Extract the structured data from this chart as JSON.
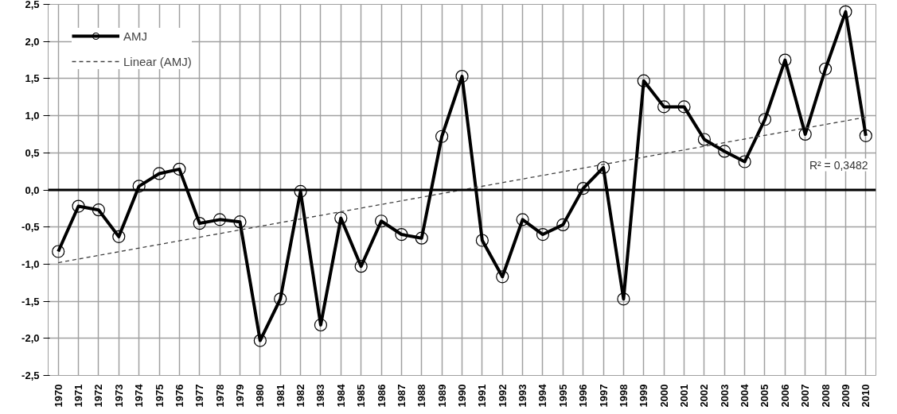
{
  "chart_data": {
    "type": "line",
    "x": [
      1970,
      1971,
      1972,
      1973,
      1974,
      1975,
      1976,
      1977,
      1978,
      1979,
      1980,
      1981,
      1982,
      1983,
      1984,
      1985,
      1986,
      1987,
      1988,
      1989,
      1990,
      1991,
      1992,
      1993,
      1994,
      1995,
      1996,
      1997,
      1998,
      1999,
      2000,
      2001,
      2002,
      2003,
      2004,
      2005,
      2006,
      2007,
      2008,
      2009,
      2010
    ],
    "series": [
      {
        "name": "AMJ",
        "color": "#000000",
        "marker": "circle",
        "line_style": "solid",
        "values": [
          -0.83,
          -0.22,
          -0.27,
          -0.63,
          0.05,
          0.22,
          0.28,
          -0.45,
          -0.4,
          -0.43,
          -2.03,
          -1.47,
          -0.02,
          -1.82,
          -0.38,
          -1.03,
          -0.42,
          -0.6,
          -0.65,
          0.72,
          1.53,
          -0.68,
          -1.17,
          -0.4,
          -0.6,
          -0.47,
          0.02,
          0.3,
          -1.47,
          1.47,
          1.12,
          1.12,
          0.68,
          0.52,
          0.38,
          0.95,
          1.75,
          0.75,
          1.63,
          2.4,
          0.73
        ]
      },
      {
        "name": "Linear (AMJ)",
        "type": "line",
        "color": "#404040",
        "marker": "none",
        "line_style": "dashed",
        "x": [
          1970,
          2010
        ],
        "values": [
          -0.98,
          0.98
        ]
      }
    ],
    "xlim": [
      1969.5,
      2010.5
    ],
    "xticks": [
      1970,
      1971,
      1972,
      1973,
      1974,
      1975,
      1976,
      1977,
      1978,
      1979,
      1980,
      1981,
      1982,
      1983,
      1984,
      1985,
      1986,
      1987,
      1988,
      1989,
      1990,
      1991,
      1992,
      1993,
      1994,
      1995,
      1996,
      1997,
      1998,
      1999,
      2000,
      2001,
      2002,
      2003,
      2004,
      2005,
      2006,
      2007,
      2008,
      2009,
      2010
    ],
    "ylim": [
      -2.5,
      2.5
    ],
    "yticks": [
      {
        "value": -2.5,
        "label": "-2,5"
      },
      {
        "value": -2.0,
        "label": "-2,0"
      },
      {
        "value": -1.5,
        "label": "-1,5"
      },
      {
        "value": -1.0,
        "label": "-1,0"
      },
      {
        "value": -0.5,
        "label": "-0,5"
      },
      {
        "value": 0,
        "label": "0,0"
      },
      {
        "value": 0.5,
        "label": "0,5"
      },
      {
        "value": 1.0,
        "label": "1,0"
      },
      {
        "value": 1.5,
        "label": "1,5"
      },
      {
        "value": 2.0,
        "label": "2,0"
      },
      {
        "value": 2.5,
        "label": "2,5"
      }
    ],
    "ref_lines": [
      {
        "axis": "y",
        "value": 0,
        "color": "#000000"
      }
    ],
    "annotations": [
      "R² = 0,3482"
    ],
    "grid": true,
    "legend": "top left"
  }
}
